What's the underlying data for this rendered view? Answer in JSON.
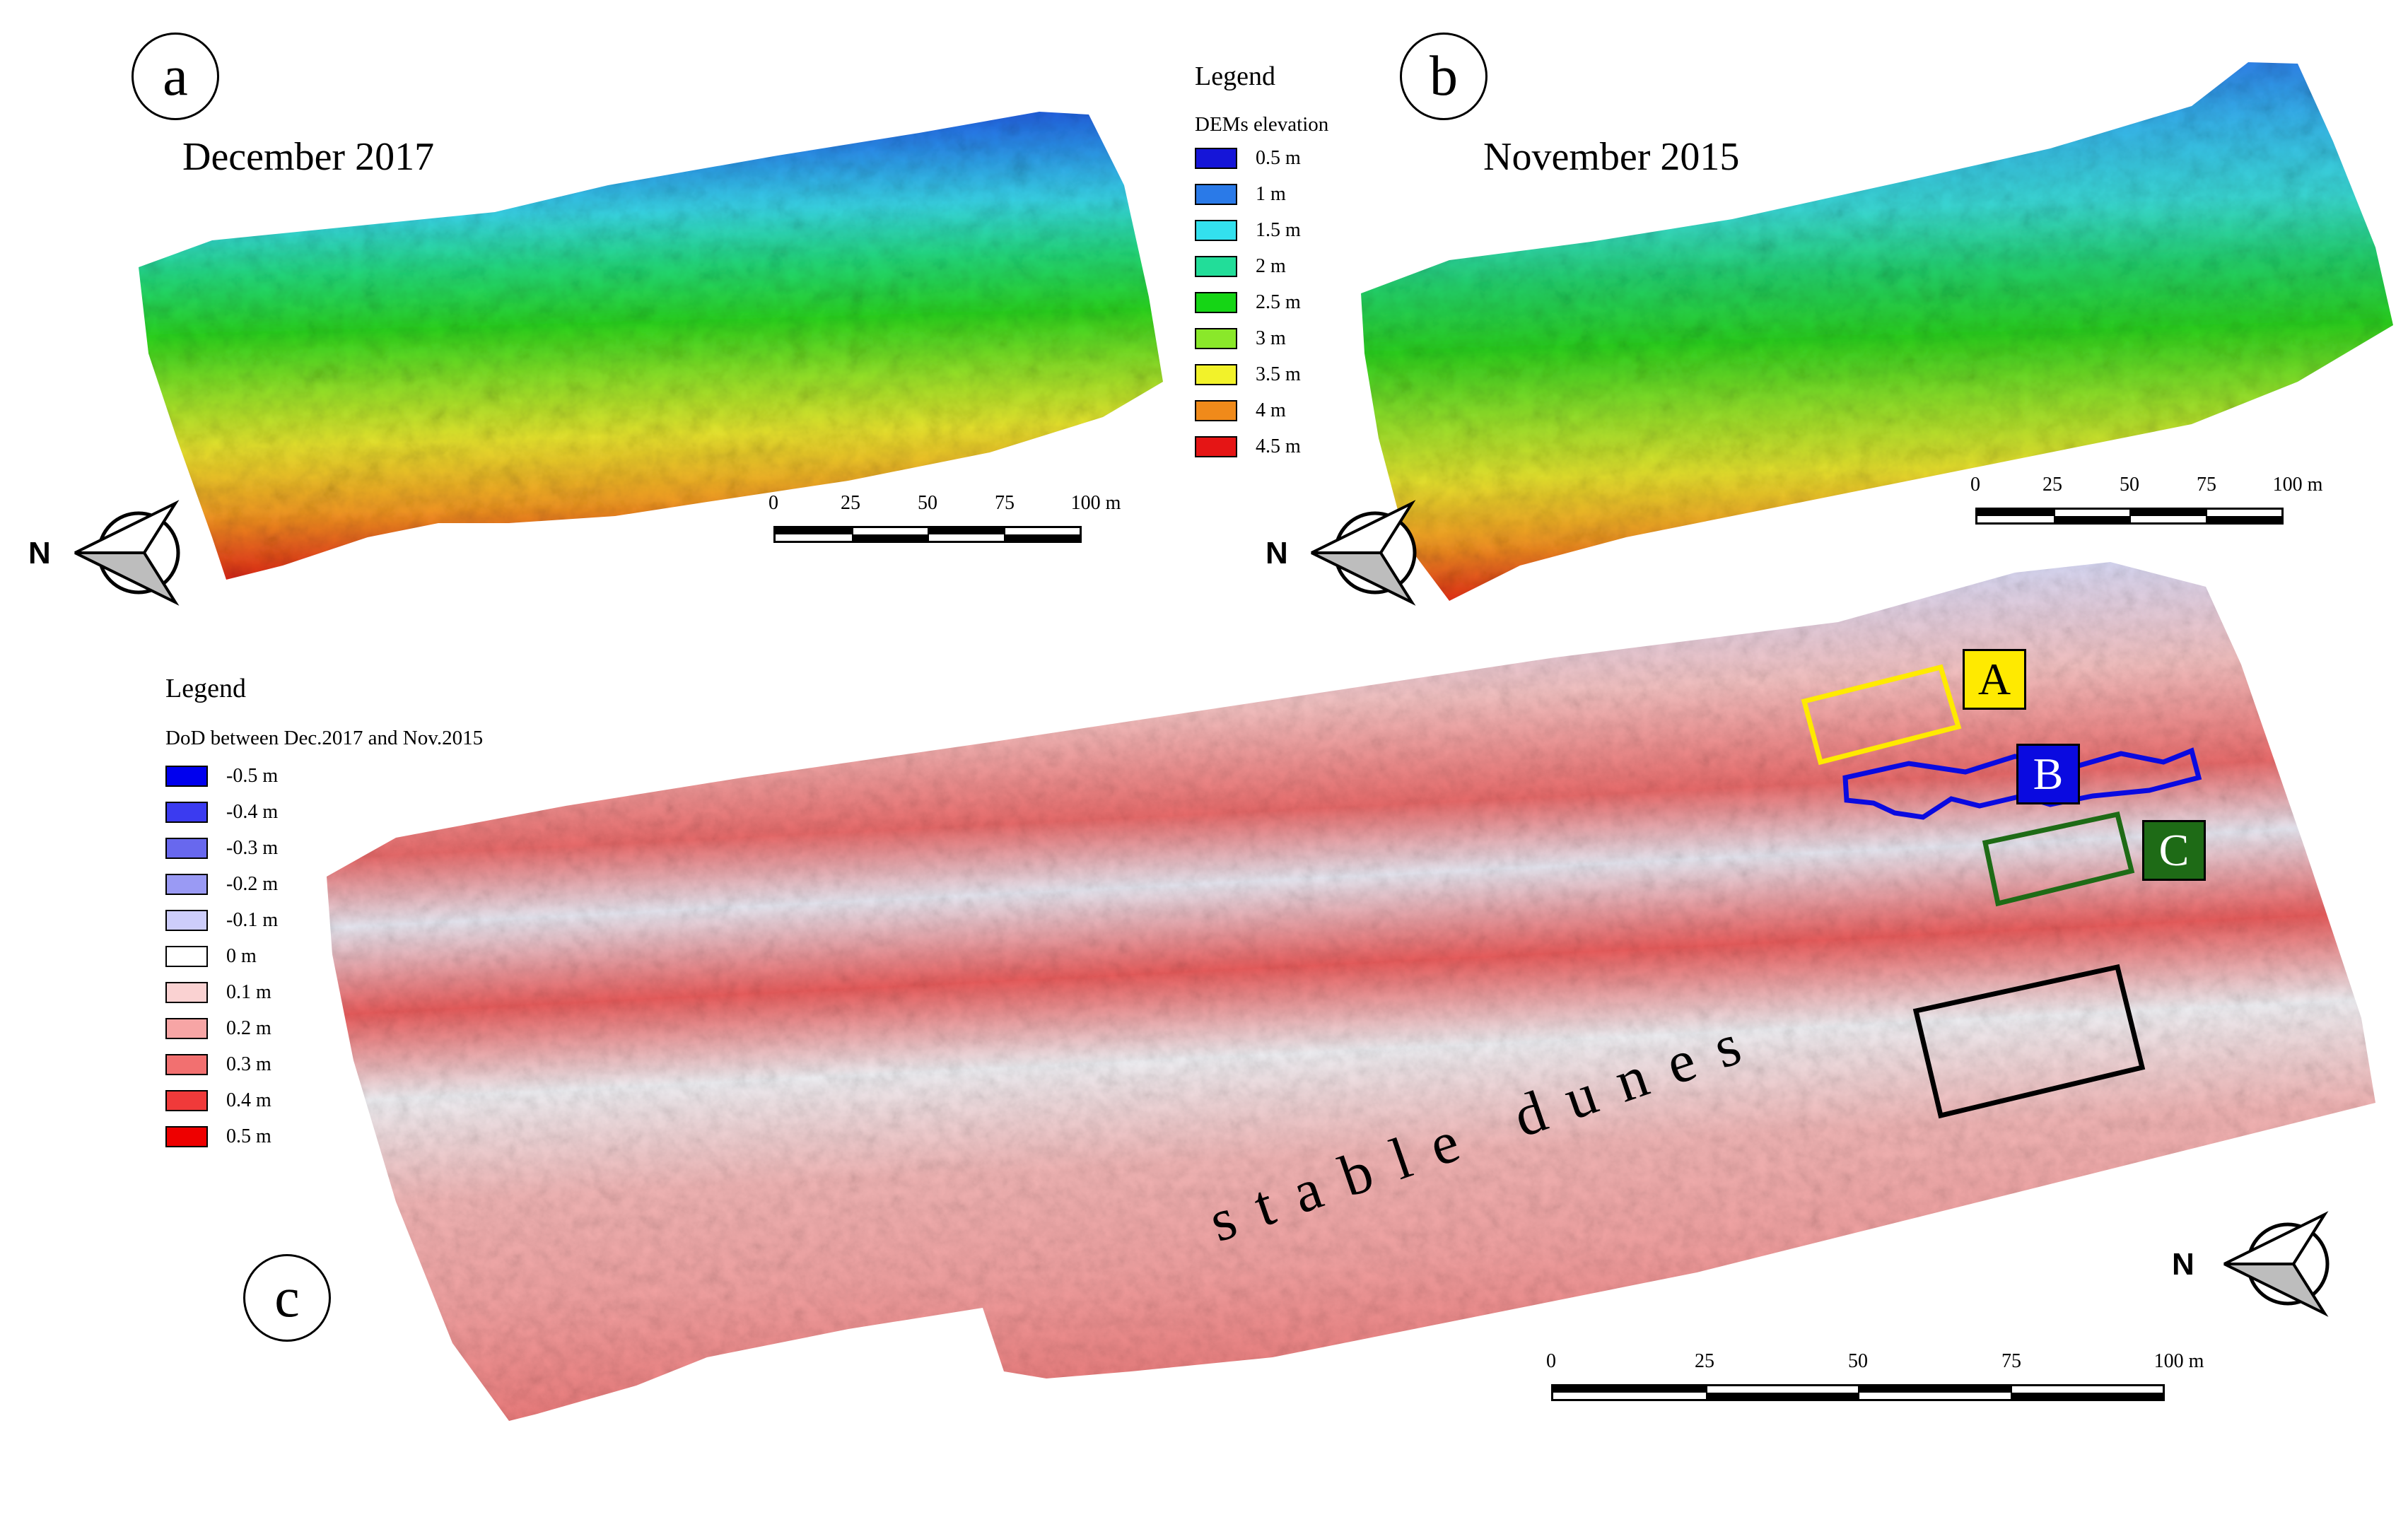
{
  "panels": {
    "a": {
      "letter": "a",
      "title": "December 2017"
    },
    "b": {
      "letter": "b",
      "title": "November 2015"
    },
    "c": {
      "letter": "c"
    }
  },
  "dem_legend": {
    "title": "Legend",
    "subtitle": "DEMs elevation",
    "items": [
      {
        "label": "0.5 m",
        "color": "#1515d8"
      },
      {
        "label": "1 m",
        "color": "#2a7ae8"
      },
      {
        "label": "1.5 m",
        "color": "#33e0ee"
      },
      {
        "label": "2 m",
        "color": "#22dd99"
      },
      {
        "label": "2.5 m",
        "color": "#15d515"
      },
      {
        "label": "3 m",
        "color": "#8ae82a"
      },
      {
        "label": "3.5 m",
        "color": "#f2f22a"
      },
      {
        "label": "4 m",
        "color": "#f08a1a"
      },
      {
        "label": "4.5 m",
        "color": "#e51515"
      }
    ]
  },
  "dod_legend": {
    "title": "Legend",
    "subtitle": "DoD between Dec.2017 and Nov.2015",
    "items": [
      {
        "label": "-0.5 m",
        "color": "#0000ee"
      },
      {
        "label": "-0.4 m",
        "color": "#3b3bf0"
      },
      {
        "label": "-0.3 m",
        "color": "#6868ee"
      },
      {
        "label": "-0.2 m",
        "color": "#9a9af4"
      },
      {
        "label": "-0.1 m",
        "color": "#cdcdfa"
      },
      {
        "label": "0 m",
        "color": "#ffffff"
      },
      {
        "label": "0.1 m",
        "color": "#fad2d2"
      },
      {
        "label": "0.2 m",
        "color": "#f7a5a5"
      },
      {
        "label": "0.3 m",
        "color": "#f27070"
      },
      {
        "label": "0.4 m",
        "color": "#f03a3a"
      },
      {
        "label": "0.5 m",
        "color": "#ee0000"
      }
    ]
  },
  "scale_bar": {
    "ticks": [
      "0",
      "25",
      "50",
      "75",
      "100 m"
    ]
  },
  "compass": {
    "north": "N"
  },
  "boxes": {
    "A": {
      "label": "A",
      "color": "#ffea00"
    },
    "B": {
      "label": "B",
      "color": "#0a0ae0"
    },
    "C": {
      "label": "C",
      "color": "#1e6b16"
    },
    "stable": {
      "color": "#000000"
    }
  },
  "annotation": {
    "text": "stable dunes"
  }
}
